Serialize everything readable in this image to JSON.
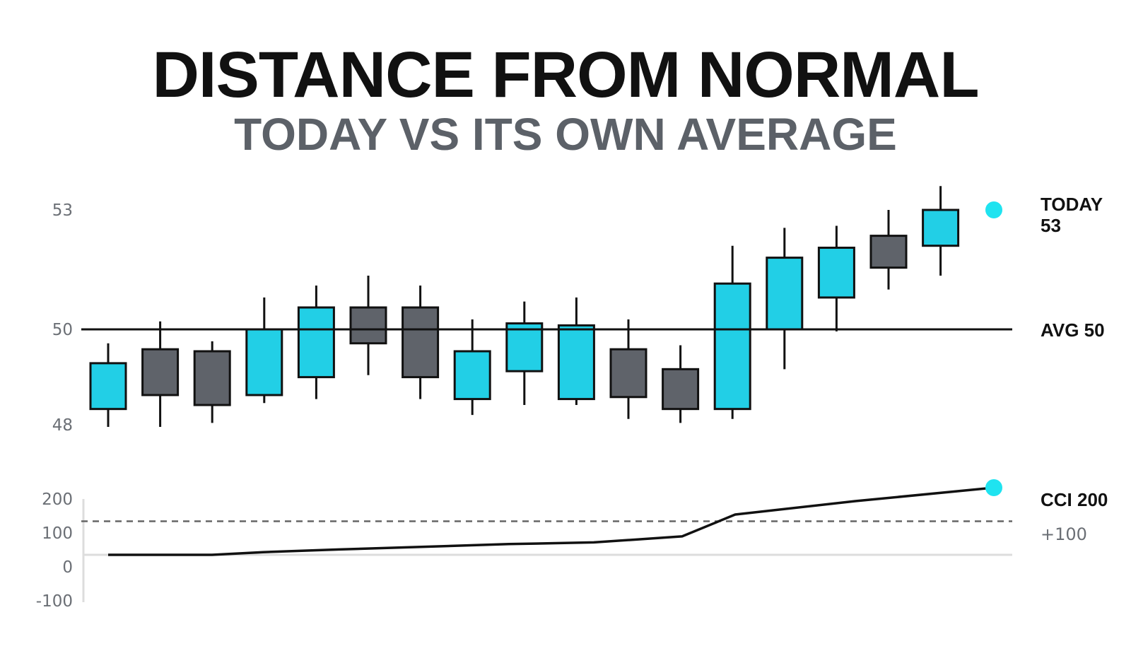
{
  "title": "DISTANCE FROM NORMAL",
  "subtitle": "TODAY VS ITS OWN AVERAGE",
  "colors": {
    "up": "#22cfe6",
    "down": "#5f636a",
    "stroke": "#111111",
    "marker": "#1fe3f0",
    "dashed": "#666666"
  },
  "chart_data": [
    {
      "type": "candlestick",
      "yticks": [
        "53",
        "50",
        "48"
      ],
      "ylim": [
        47.5,
        53.5
      ],
      "avg_value": 50,
      "avg_label": "AVG 50",
      "today_label": "TODAY",
      "today_value_label": "53",
      "candles": [
        {
          "open": 48.0,
          "close": 49.15,
          "high": 49.65,
          "low": 47.55,
          "dir": "up"
        },
        {
          "open": 49.5,
          "close": 48.35,
          "high": 50.2,
          "low": 47.55,
          "dir": "down"
        },
        {
          "open": 49.45,
          "close": 48.1,
          "high": 49.7,
          "low": 47.65,
          "dir": "down"
        },
        {
          "open": 48.35,
          "close": 50.0,
          "high": 50.8,
          "low": 48.15,
          "dir": "up"
        },
        {
          "open": 48.8,
          "close": 50.55,
          "high": 51.1,
          "low": 48.25,
          "dir": "up"
        },
        {
          "open": 50.55,
          "close": 49.65,
          "high": 51.35,
          "low": 48.85,
          "dir": "down"
        },
        {
          "open": 50.55,
          "close": 48.8,
          "high": 51.1,
          "low": 48.25,
          "dir": "down"
        },
        {
          "open": 48.25,
          "close": 49.45,
          "high": 50.25,
          "low": 47.85,
          "dir": "up"
        },
        {
          "open": 48.95,
          "close": 50.15,
          "high": 50.7,
          "low": 48.1,
          "dir": "up"
        },
        {
          "open": 48.25,
          "close": 50.1,
          "high": 50.8,
          "low": 48.1,
          "dir": "up"
        },
        {
          "open": 49.5,
          "close": 48.3,
          "high": 50.25,
          "low": 47.75,
          "dir": "down"
        },
        {
          "open": 49.0,
          "close": 48.0,
          "high": 49.6,
          "low": 47.65,
          "dir": "down"
        },
        {
          "open": 48.0,
          "close": 51.15,
          "high": 52.1,
          "low": 47.75,
          "dir": "up"
        },
        {
          "open": 50.0,
          "close": 51.8,
          "high": 52.55,
          "low": 49.0,
          "dir": "up"
        },
        {
          "open": 50.8,
          "close": 52.05,
          "high": 52.6,
          "low": 49.95,
          "dir": "up"
        },
        {
          "open": 52.35,
          "close": 51.55,
          "high": 53.0,
          "low": 51.0,
          "dir": "down"
        },
        {
          "open": 52.1,
          "close": 53.0,
          "high": 53.6,
          "low": 51.35,
          "dir": "up"
        }
      ]
    },
    {
      "type": "line",
      "yticks": [
        "200",
        "100",
        "0",
        "-100"
      ],
      "ylim": [
        -100,
        200
      ],
      "threshold": 100,
      "threshold_label": "+100",
      "end_label": "CCI 200",
      "series": [
        {
          "values": [
            0,
            0,
            0,
            8,
            16,
            24,
            32,
            37,
            55,
            120,
            160,
            200
          ]
        }
      ]
    }
  ]
}
